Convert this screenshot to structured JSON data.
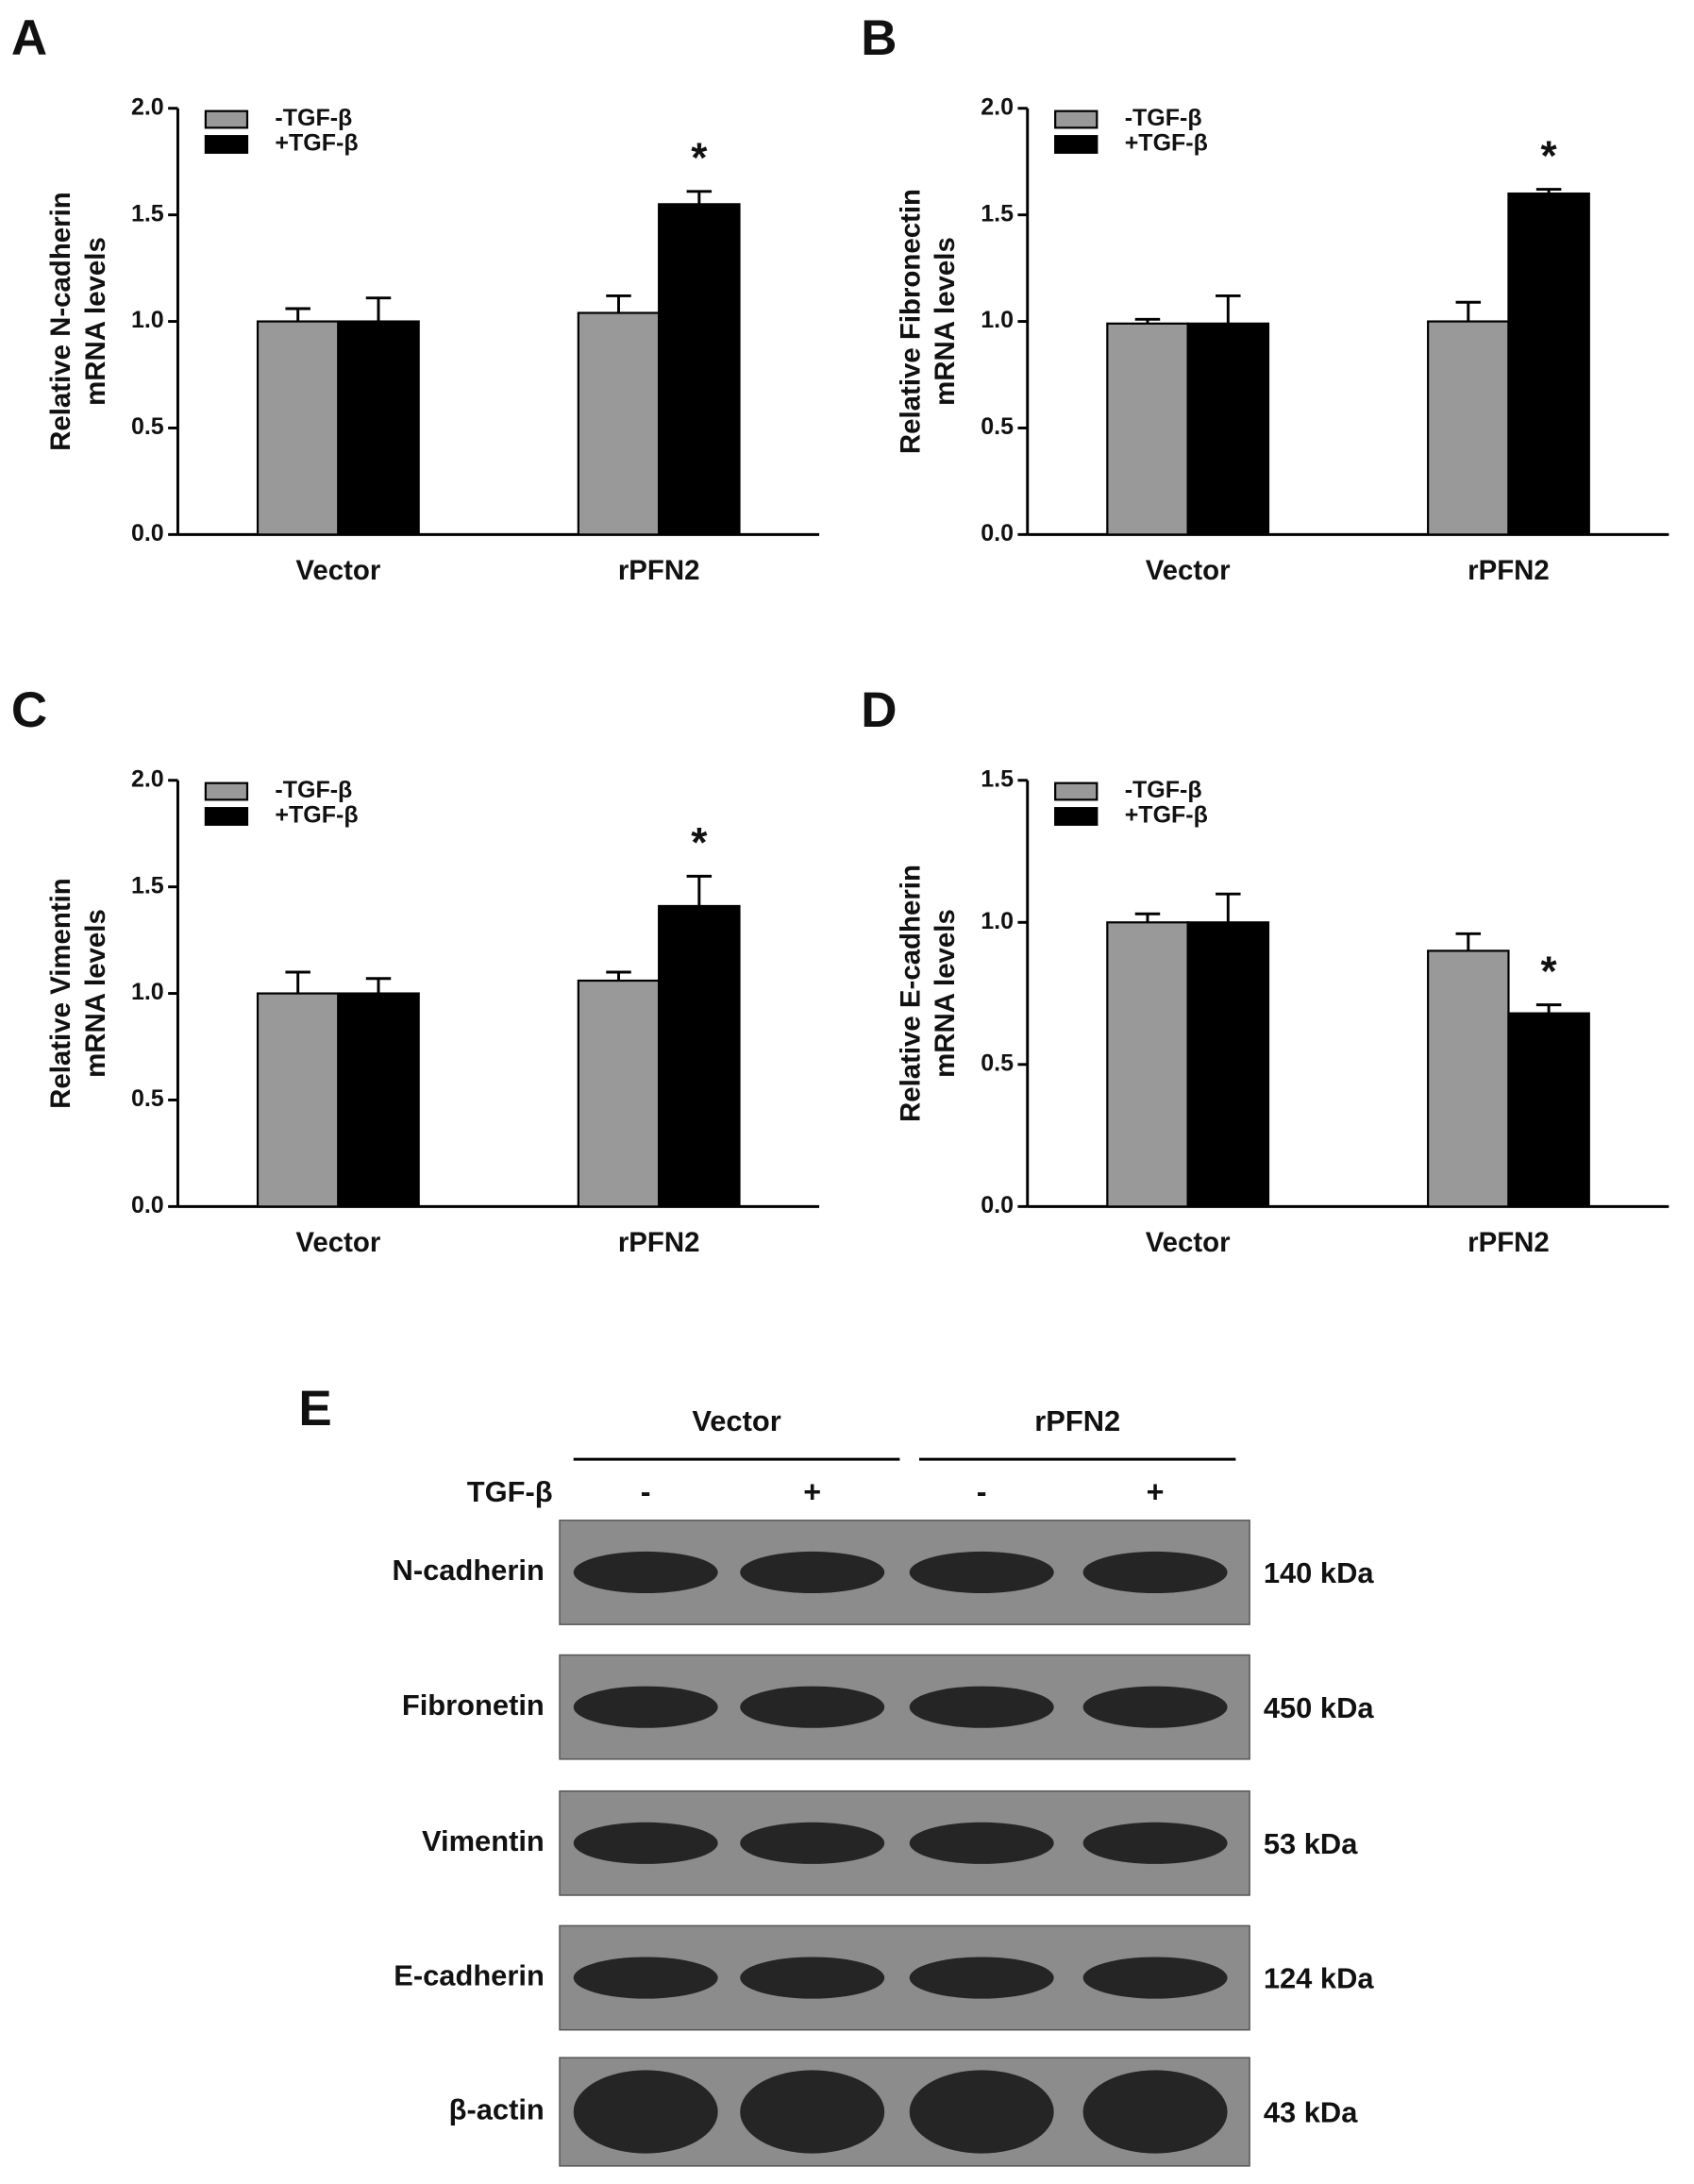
{
  "chart_data": [
    {
      "type": "bar",
      "panel": "A",
      "ylabel": [
        "Relative N-cadherin",
        "mRNA levels"
      ],
      "categories": [
        "Vector",
        "rPFN2"
      ],
      "series": [
        {
          "name": "-TGF-β",
          "color": "#999999",
          "values": [
            1.0,
            1.04
          ],
          "errors": [
            0.06,
            0.08
          ]
        },
        {
          "name": "+TGF-β",
          "color": "#000000",
          "values": [
            1.0,
            1.55
          ],
          "errors": [
            0.11,
            0.06
          ]
        }
      ],
      "annotation": "*",
      "ylim": [
        0,
        2
      ],
      "yticks": [
        {
          "value": 0,
          "label": "0.0"
        },
        {
          "value": 0.5,
          "label": "0.5"
        },
        {
          "value": 1,
          "label": "1.0"
        },
        {
          "value": 1.5,
          "label": "1.5"
        },
        {
          "value": 2,
          "label": "2.0"
        }
      ]
    },
    {
      "type": "bar",
      "panel": "B",
      "ylabel": [
        "Relative Fibronectin",
        "mRNA levels"
      ],
      "categories": [
        "Vector",
        "rPFN2"
      ],
      "series": [
        {
          "name": "-TGF-β",
          "color": "#999999",
          "values": [
            0.99,
            1.0
          ],
          "errors": [
            0.02,
            0.09
          ]
        },
        {
          "name": "+TGF-β",
          "color": "#000000",
          "values": [
            0.99,
            1.6
          ],
          "errors": [
            0.13,
            0.02
          ]
        }
      ],
      "annotation": "*",
      "ylim": [
        0,
        2
      ],
      "yticks": [
        {
          "value": 0,
          "label": "0.0"
        },
        {
          "value": 0.5,
          "label": "0.5"
        },
        {
          "value": 1,
          "label": "1.0"
        },
        {
          "value": 1.5,
          "label": "1.5"
        },
        {
          "value": 2,
          "label": "2.0"
        }
      ]
    },
    {
      "type": "bar",
      "panel": "C",
      "ylabel": [
        "Relative Vimentin",
        "mRNA levels"
      ],
      "categories": [
        "Vector",
        "rPFN2"
      ],
      "series": [
        {
          "name": "-TGF-β",
          "color": "#999999",
          "values": [
            1.0,
            1.06
          ],
          "errors": [
            0.1,
            0.04
          ]
        },
        {
          "name": "+TGF-β",
          "color": "#000000",
          "values": [
            1.0,
            1.41
          ],
          "errors": [
            0.07,
            0.14
          ]
        }
      ],
      "annotation": "*",
      "ylim": [
        0,
        2
      ],
      "yticks": [
        {
          "value": 0,
          "label": "0.0"
        },
        {
          "value": 0.5,
          "label": "0.5"
        },
        {
          "value": 1,
          "label": "1.0"
        },
        {
          "value": 1.5,
          "label": "1.5"
        },
        {
          "value": 2,
          "label": "2.0"
        }
      ]
    },
    {
      "type": "bar",
      "panel": "D",
      "ylabel": [
        "Relative E-cadherin",
        "mRNA levels"
      ],
      "categories": [
        "Vector",
        "rPFN2"
      ],
      "series": [
        {
          "name": "-TGF-β",
          "color": "#999999",
          "values": [
            1.0,
            0.9
          ],
          "errors": [
            0.03,
            0.06
          ]
        },
        {
          "name": "+TGF-β",
          "color": "#000000",
          "values": [
            1.0,
            0.68
          ],
          "errors": [
            0.1,
            0.03
          ]
        }
      ],
      "annotation": "*",
      "ylim": [
        0,
        1.5
      ],
      "yticks": [
        {
          "value": 0,
          "label": "0.0"
        },
        {
          "value": 0.5,
          "label": "0.5"
        },
        {
          "value": 1,
          "label": "1.0"
        },
        {
          "value": 1.5,
          "label": "1.5"
        }
      ]
    }
  ],
  "blot": {
    "panel": "E",
    "groups": [
      "Vector",
      "rPFN2"
    ],
    "treatment": "TGF-β",
    "lanes": [
      "-",
      "+",
      "-",
      "+"
    ],
    "rows": [
      {
        "protein": "N-cadherin",
        "size": "140 kDa"
      },
      {
        "protein": "Fibronetin",
        "size": "450 kDa"
      },
      {
        "protein": "Vimentin",
        "size": "53 kDa"
      },
      {
        "protein": "E-cadherin",
        "size": "124 kDa"
      },
      {
        "protein": "β-actin",
        "size": "43 kDa"
      }
    ]
  }
}
